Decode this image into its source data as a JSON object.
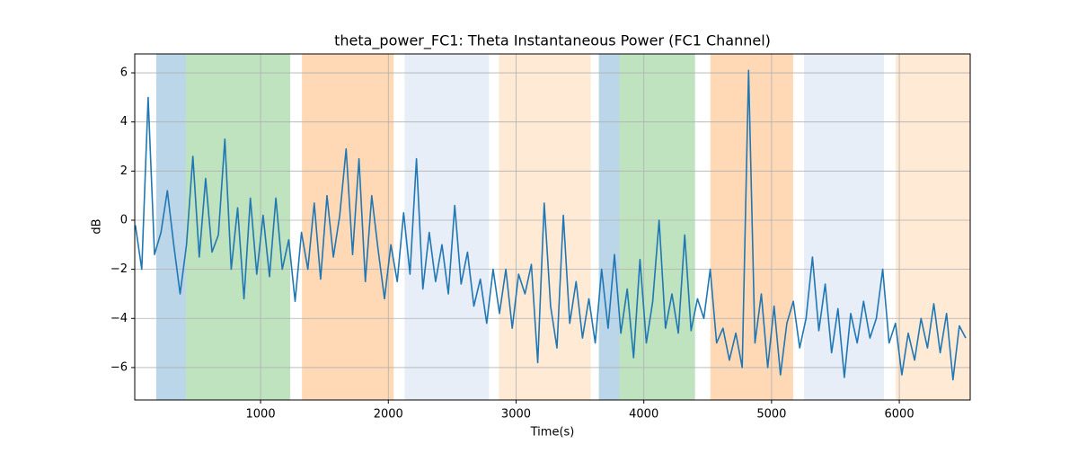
{
  "chart_data": {
    "type": "line",
    "title": "theta_power_FC1: Theta Instantaneous Power (FC1 Channel)",
    "xlabel": "Time(s)",
    "ylabel": "dB",
    "color": "#1f77b4",
    "grid": true,
    "xlim": [
      15,
      6555
    ],
    "ylim": [
      -7.32,
      6.77
    ],
    "xticks": [
      1000,
      2000,
      3000,
      4000,
      5000,
      6000
    ],
    "yticks": [
      {
        "value": -6,
        "label": "−6"
      },
      {
        "value": -4,
        "label": "−4"
      },
      {
        "value": -2,
        "label": "−2"
      },
      0,
      2,
      4,
      6
    ],
    "spans": [
      {
        "start": 183,
        "end": 415,
        "color": "#1f77b4",
        "alpha": 0.3
      },
      {
        "start": 415,
        "end": 1232,
        "color": "#2ca02c",
        "alpha": 0.3
      },
      {
        "start": 1324,
        "end": 2042,
        "color": "#ff7f0e",
        "alpha": 0.3
      },
      {
        "start": 2127,
        "end": 2789,
        "color": "#aec7e8",
        "alpha": 0.3
      },
      {
        "start": 2866,
        "end": 3585,
        "color": "#ffbb78",
        "alpha": 0.3
      },
      {
        "start": 3648,
        "end": 3810,
        "color": "#1f77b4",
        "alpha": 0.3
      },
      {
        "start": 3810,
        "end": 4401,
        "color": "#2ca02c",
        "alpha": 0.3
      },
      {
        "start": 4521,
        "end": 5169,
        "color": "#ff7f0e",
        "alpha": 0.3
      },
      {
        "start": 5254,
        "end": 5880,
        "color": "#aec7e8",
        "alpha": 0.3
      },
      {
        "start": 5972,
        "end": 6555,
        "color": "#ffbb78",
        "alpha": 0.3
      }
    ],
    "x": [
      20,
      70,
      120,
      170,
      220,
      270,
      320,
      370,
      420,
      470,
      520,
      570,
      620,
      670,
      720,
      770,
      820,
      870,
      920,
      970,
      1020,
      1070,
      1120,
      1170,
      1220,
      1270,
      1320,
      1370,
      1420,
      1470,
      1520,
      1570,
      1620,
      1670,
      1720,
      1770,
      1820,
      1870,
      1920,
      1970,
      2020,
      2070,
      2120,
      2170,
      2220,
      2270,
      2320,
      2370,
      2420,
      2470,
      2520,
      2570,
      2620,
      2670,
      2720,
      2770,
      2820,
      2870,
      2920,
      2970,
      3020,
      3070,
      3120,
      3170,
      3220,
      3270,
      3320,
      3370,
      3420,
      3470,
      3520,
      3570,
      3620,
      3670,
      3720,
      3770,
      3820,
      3870,
      3920,
      3970,
      4020,
      4070,
      4120,
      4170,
      4220,
      4270,
      4320,
      4370,
      4420,
      4470,
      4520,
      4570,
      4620,
      4670,
      4720,
      4770,
      4820,
      4870,
      4920,
      4970,
      5020,
      5070,
      5120,
      5170,
      5220,
      5270,
      5320,
      5370,
      5420,
      5470,
      5520,
      5570,
      5620,
      5670,
      5720,
      5770,
      5820,
      5870,
      5920,
      5970,
      6020,
      6070,
      6120,
      6170,
      6220,
      6270,
      6320,
      6370,
      6420,
      6470,
      6520
    ],
    "values": [
      -0.2,
      -2.0,
      5.0,
      -1.4,
      -0.5,
      1.2,
      -1.0,
      -3.0,
      -1.0,
      2.6,
      -1.5,
      1.7,
      -1.3,
      -0.6,
      3.3,
      -2.0,
      0.5,
      -3.2,
      0.9,
      -2.2,
      0.2,
      -2.3,
      0.9,
      -2.0,
      -0.8,
      -3.3,
      -0.5,
      -2.0,
      0.7,
      -2.4,
      1.0,
      -1.5,
      0.2,
      2.9,
      -1.4,
      2.5,
      -2.5,
      1.0,
      -1.2,
      -3.2,
      -1.0,
      -2.5,
      0.3,
      -2.2,
      2.5,
      -2.8,
      -0.5,
      -2.5,
      -1.0,
      -3.0,
      0.6,
      -2.6,
      -1.3,
      -3.5,
      -2.4,
      -4.2,
      -2.0,
      -3.8,
      -2.0,
      -4.4,
      -2.2,
      -3.0,
      -1.8,
      -5.8,
      0.7,
      -3.5,
      -5.2,
      0.2,
      -4.2,
      -2.5,
      -4.8,
      -3.2,
      -5.0,
      -2.0,
      -4.4,
      -1.4,
      -4.6,
      -2.8,
      -5.6,
      -1.6,
      -5.0,
      -3.3,
      0.0,
      -4.4,
      -3.0,
      -4.6,
      -0.6,
      -4.5,
      -3.2,
      -4.0,
      -2.0,
      -5.0,
      -4.4,
      -5.7,
      -4.6,
      -6.0,
      6.1,
      -5.0,
      -3.0,
      -6.0,
      -3.5,
      -6.3,
      -4.2,
      -3.3,
      -5.2,
      -4.0,
      -1.5,
      -4.5,
      -2.6,
      -5.4,
      -3.6,
      -6.4,
      -3.8,
      -5.0,
      -3.3,
      -4.8,
      -4.0,
      -2.0,
      -5.0,
      -4.2,
      -6.3,
      -4.6,
      -5.7,
      -4.0,
      -5.2,
      -3.4,
      -5.4,
      -3.8,
      -6.5,
      -4.3,
      -4.8
    ]
  }
}
